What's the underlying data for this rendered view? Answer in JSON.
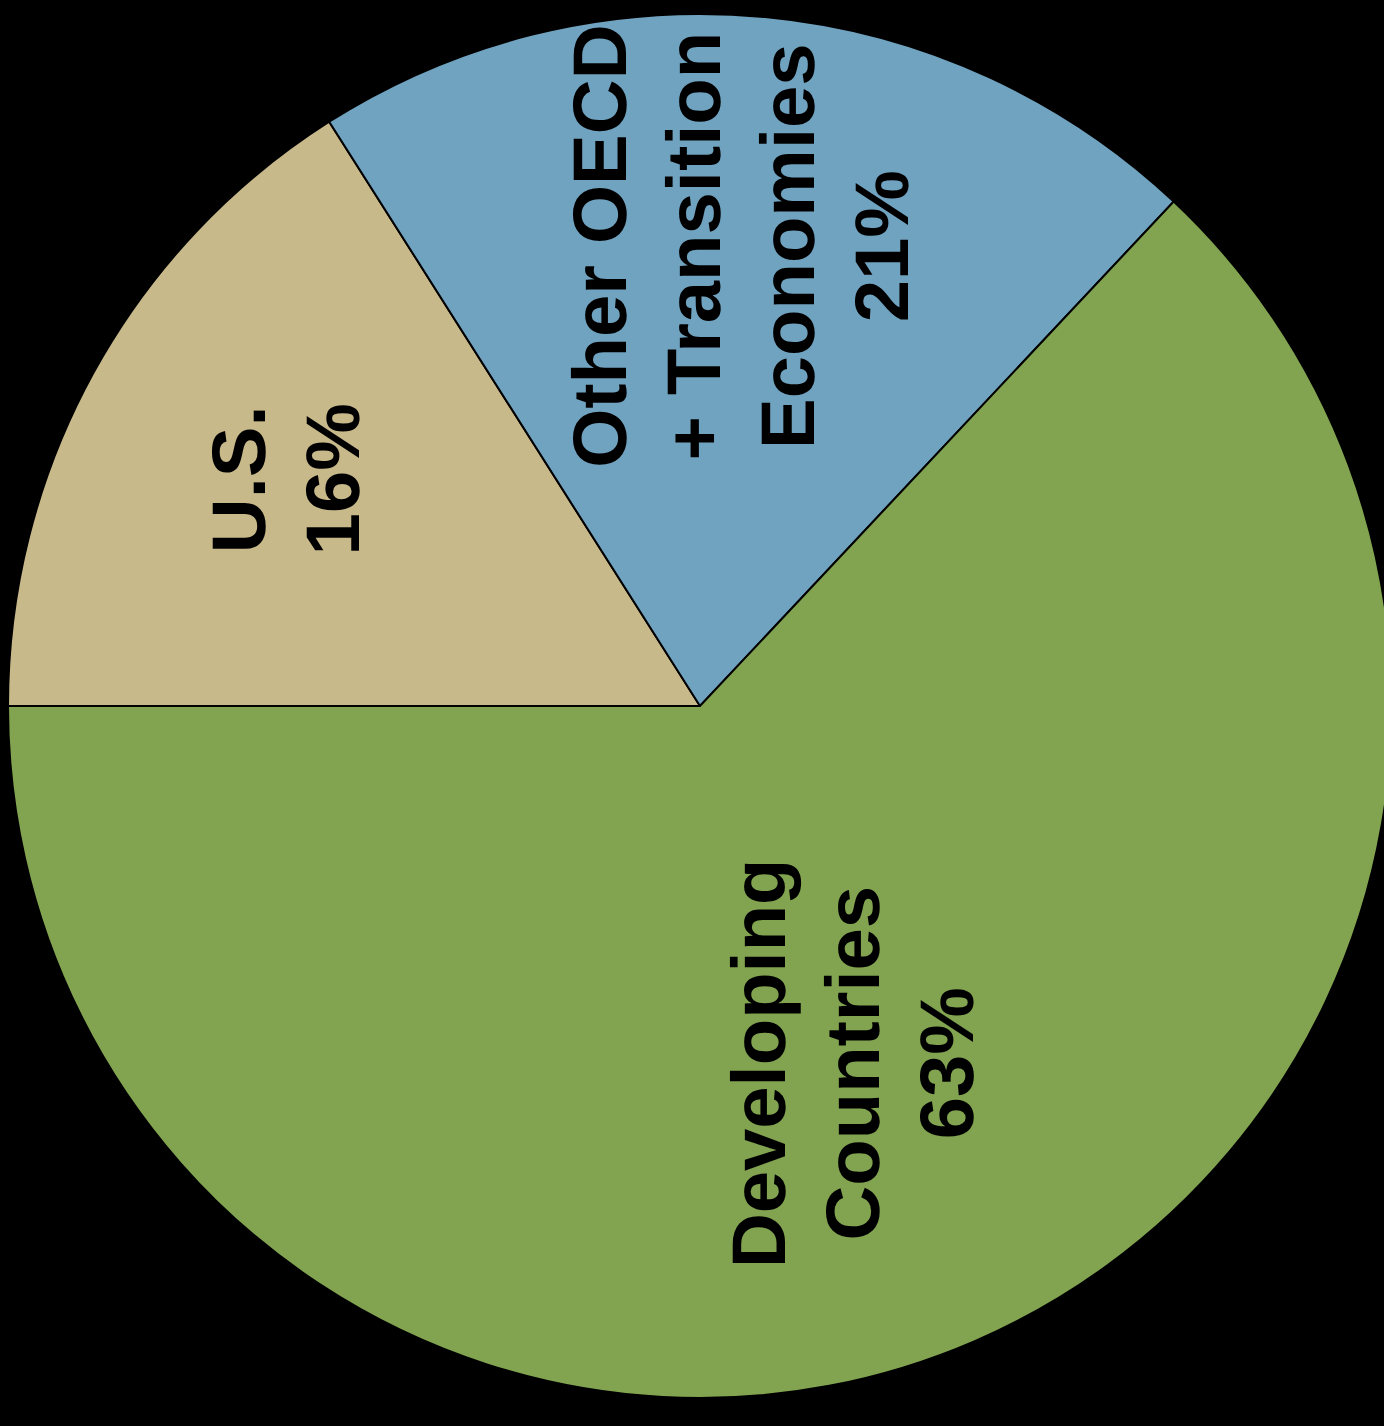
{
  "chart_data": {
    "type": "pie",
    "categories": [
      "U.S.",
      "Other OECD + Transition Economies",
      "Developing Countries"
    ],
    "values": [
      16,
      21,
      63
    ],
    "value_labels": [
      "16%",
      "21%",
      "63%"
    ],
    "colors": [
      "#c8b98a",
      "#70a3c0",
      "#82a450"
    ]
  }
}
